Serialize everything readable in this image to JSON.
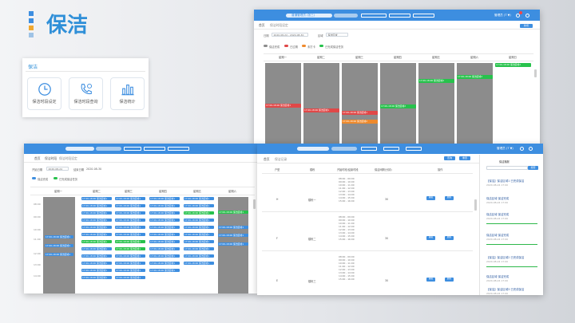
{
  "page": {
    "title": "保洁"
  },
  "colors": {
    "accent": "#3d8ee0",
    "title_blue": "#2f8fd8",
    "green": "#27c24c",
    "red": "#e04848",
    "orange": "#ef8a2c",
    "event_gray": "#8c8c8c"
  },
  "menu": {
    "title": "保洁",
    "tiles": [
      {
        "label": "保洁时段设定",
        "icon": "clock-icon"
      },
      {
        "label": "保洁时段查询",
        "icon": "phone-icon"
      },
      {
        "label": "保洁统计",
        "icon": "bar-chart-icon"
      }
    ]
  },
  "win1": {
    "topbar": {
      "user_label": "普通管理员 (张三)",
      "user_short": "管理员 (T ▼)"
    },
    "tabs": [
      "首页",
      "保洁时段设定"
    ],
    "add_button": "新增",
    "filter": {
      "date_label": "日期",
      "date_value": "2020-08-24 - 2020-08-30",
      "area_label": "区域",
      "area_value": "保洁区域"
    },
    "legend": [
      "保洁完成",
      "已过期",
      "未打卡",
      "已完成保洁任务"
    ],
    "columns": [
      "星期一",
      "星期二",
      "星期三",
      "星期四",
      "星期五",
      "星期六",
      "星期日"
    ],
    "events": [
      "17:00-18:00 保洁区域1",
      "17:00-18:00 保洁区域1",
      "17:00-18:00 保洁区域1",
      "17:00-18:00 保洁区域2",
      "17:00-18:00 保洁区域2",
      "17:00-18:00 保洁区域2",
      "17:00-18:00 保洁区域2"
    ]
  },
  "win2": {
    "tabs": [
      "首页",
      "保洁时段",
      "保洁时段设定"
    ],
    "filter": {
      "date_label": "开始日期",
      "date_value": "2020-08-24",
      "area_label": "结束日期",
      "area_value": "2020-08-30"
    },
    "legend": [
      "保洁完成",
      "已完成保洁任务"
    ],
    "columns": [
      "星期一",
      "星期二",
      "星期三",
      "星期四",
      "星期五",
      "星期六",
      "星期日"
    ],
    "hours": [
      "08:00",
      "09:00",
      "10:00",
      "11:00",
      "12:00",
      "13:00",
      "14:00"
    ],
    "event_text": "17:00-18:00 保洁区域1"
  },
  "win3": {
    "tabs": [
      "首页",
      "保洁记录"
    ],
    "buttons": [
      "查询",
      "重置"
    ],
    "table_headers": [
      "户型",
      "楼栋",
      "开始时段/结束时段",
      "保洁间隔(分钟)",
      "操作"
    ],
    "rows": [
      {
        "type": "H",
        "building": "楼栋一",
        "times": "08:00 - 09:00\n09:00 - 10:00\n10:00 - 11:00\n11:00 - 12:00\n12:00 - 13:00\n13:00 - 14:00\n14:00 - 15:00\n15:00 - 16:00",
        "interval": "30"
      },
      {
        "type": "F",
        "building": "楼栋二",
        "times": "08:00 - 09:00\n09:00 - 10:00\n10:00 - 11:00\n11:00 - 12:00\n12:00 - 13:00\n13:00 - 14:00\n14:00 - 15:00\n15:00 - 16:00",
        "interval": "30"
      },
      {
        "type": "E",
        "building": "楼栋三",
        "times": "08:00 - 09:00\n09:00 - 10:00\n10:00 - 11:00\n11:00 - 12:00\n12:00 - 13:00\n13:00 - 14:00\n14:00 - 15:00\n15:00 - 16:00",
        "interval": "30"
      }
    ],
    "action_labels": [
      "编辑",
      "删除"
    ],
    "feed": {
      "title": "保洁播报",
      "search_button": "搜索",
      "items": [
        {
          "title": "【保洁】保洁区域1 已完成保洁",
          "time": "2020-08-24 17:00"
        },
        {
          "title": "保洁区域 保洁完成",
          "time": "2020-08-24 17:00"
        },
        {
          "title": "保洁区域 保洁完成",
          "time": "2020-08-24 17:00"
        },
        {
          "title": "保洁区域 保洁完成",
          "time": "2020-08-24 17:00"
        },
        {
          "title": "【保洁】保洁区域2 已完成保洁",
          "time": "2020-08-24 17:00"
        },
        {
          "title": "保洁区域 保洁完成",
          "time": "2020-08-24 17:00"
        },
        {
          "title": "【保洁】保洁区域3 已完成保洁",
          "time": "2020-08-24 17:00"
        }
      ]
    }
  }
}
